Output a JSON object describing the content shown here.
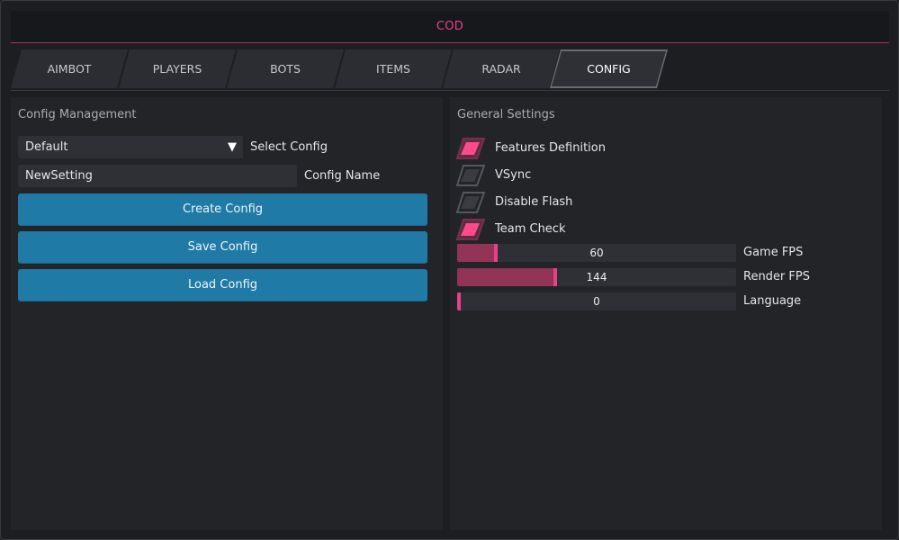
{
  "window": {
    "title": "COD"
  },
  "tabs": [
    {
      "label": "AIMBOT",
      "active": false
    },
    {
      "label": "PLAYERS",
      "active": false
    },
    {
      "label": "BOTS",
      "active": false
    },
    {
      "label": "ITEMS",
      "active": false
    },
    {
      "label": "RADAR",
      "active": false
    },
    {
      "label": "CONFIG",
      "active": true
    }
  ],
  "config_management": {
    "title": "Config Management",
    "select": {
      "value": "Default",
      "label": "Select Config",
      "arrow_icon": "triangle-down-icon"
    },
    "name_input": {
      "value": "NewSetting",
      "label": "Config Name"
    },
    "buttons": {
      "create": "Create Config",
      "save": "Save Config",
      "load": "Load Config"
    }
  },
  "general_settings": {
    "title": "General Settings",
    "checkboxes": [
      {
        "label": "Features Definition",
        "checked": true
      },
      {
        "label": "VSync",
        "checked": false
      },
      {
        "label": "Disable Flash",
        "checked": false
      },
      {
        "label": "Team Check",
        "checked": true
      }
    ],
    "sliders": [
      {
        "label": "Game FPS",
        "value": "60",
        "fraction": 0.14
      },
      {
        "label": "Render FPS",
        "value": "144",
        "fraction": 0.35
      },
      {
        "label": "Language",
        "value": "0",
        "fraction": 0.0
      }
    ]
  },
  "colors": {
    "accent": "#e8418a",
    "slider_fill": "#933457",
    "button": "#1f7aa6",
    "check_on": "#ff4a8d",
    "check_off": "#3a3c42"
  }
}
